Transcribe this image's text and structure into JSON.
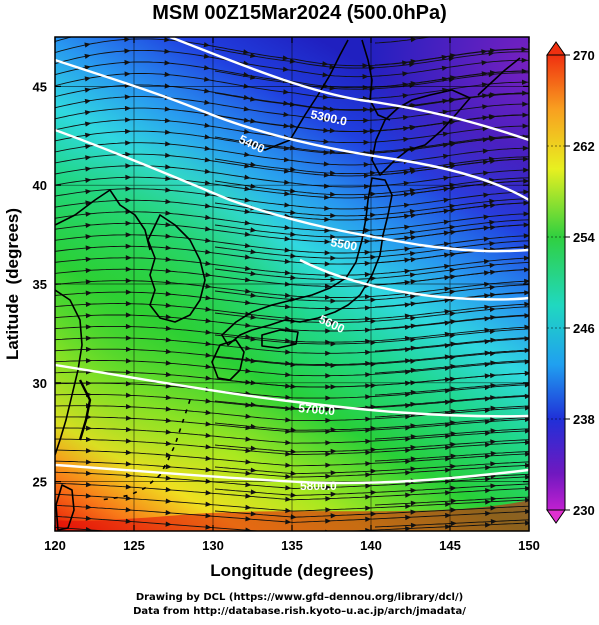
{
  "title": "MSM 00Z15Mar2024 (500.0hPa)",
  "x_axis": {
    "label": "Longitude (degrees)",
    "range": [
      120,
      150
    ],
    "ticks": [
      120,
      125,
      130,
      135,
      140,
      145,
      150
    ]
  },
  "y_axis": {
    "label": "Latitude  (degrees)",
    "range": [
      22.5,
      47.5
    ],
    "ticks": [
      25,
      30,
      35,
      40,
      45
    ]
  },
  "colorbar": {
    "range": [
      230,
      270
    ],
    "ticks": [
      "270",
      "262",
      "254",
      "246",
      "238",
      "230"
    ]
  },
  "contour_labels": [
    "5300.0",
    "5400",
    "5500",
    "5600",
    "5700.0",
    "5800.0"
  ],
  "colors": {
    "warm_red": "#e01010",
    "green": "#20d040",
    "cyan": "#30d8e8",
    "blue": "#1830d8",
    "purple": "#7a18c0",
    "contour": "#ffffff",
    "streamline": "#111111"
  },
  "credits": {
    "line1": "Drawing by DCL (https://www.gfd–dennou.org/library/dcl/)",
    "line2": "Data from http://database.rish.kyoto–u.ac.jp/arch/jmadata/"
  }
}
